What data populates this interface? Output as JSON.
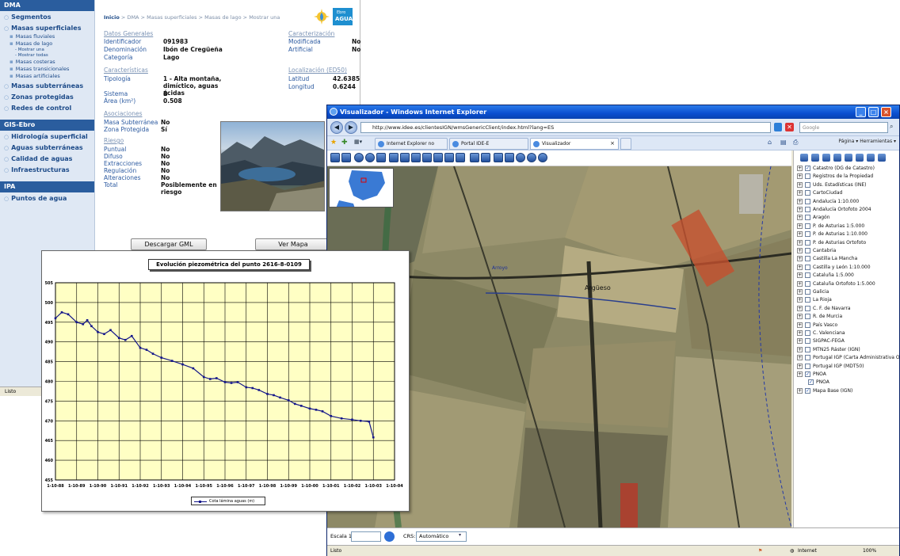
{
  "dma": {
    "sidebar": {
      "header1": "DMA",
      "items1": [
        "Segmentos",
        "Masas superficiales"
      ],
      "sub": [
        "Masas fluviales",
        "Masas de lago"
      ],
      "subsub": [
        "Mostrar una",
        "Mostrar todas"
      ],
      "sub2": [
        "Masas costeras",
        "Masas transicionales",
        "Masas artificiales"
      ],
      "items2": [
        "Masas subterráneas",
        "Zonas protegidas",
        "Redes de control"
      ],
      "header2": "GIS-Ebro",
      "items3": [
        "Hidrología superficial",
        "Aguas subterráneas",
        "Calidad de aguas",
        "Infraestructuras"
      ],
      "header3": "IPA",
      "items4": [
        "Puntos de agua"
      ]
    },
    "breadcrumb": [
      "Inicio",
      "DMA",
      "Masas superficiales",
      "Masas de lago",
      "Mostrar una"
    ],
    "breadcrumb_sep": ">",
    "logo_text": "AGUA",
    "logo_sub": "Ebro",
    "general": {
      "title": "Datos Generales",
      "rows": [
        {
          "label": "Identificador",
          "value": "091983"
        },
        {
          "label": "Denominación",
          "value": "Ibón de Cregüeña"
        },
        {
          "label": "Categoría",
          "value": "Lago"
        }
      ]
    },
    "caract": {
      "title": "Características",
      "tipologia_label": "Tipología",
      "tipologia_value": "1 - Alta montaña, dimíctico, aguas ácidas",
      "sistema_label": "Sistema",
      "sistema_value": "B",
      "area_label": "Área (km²)",
      "area_value": "0.508"
    },
    "caracterizacion": {
      "title": "Caracterización",
      "rows": [
        {
          "label": "Modificada",
          "value": "No"
        },
        {
          "label": "Artificial",
          "value": "No"
        }
      ]
    },
    "localizacion": {
      "title": "Localización (ED50)",
      "rows": [
        {
          "label": "Latitud",
          "value": "42.6385"
        },
        {
          "label": "Longitud",
          "value": "0.6244"
        }
      ]
    },
    "asociaciones": {
      "title": "Asociaciones",
      "rows": [
        {
          "label": "Masa Subterránea",
          "value": "No"
        },
        {
          "label": "Zona Protegida",
          "value": "Sí"
        }
      ]
    },
    "riesgo": {
      "title": "Riesgo",
      "rows": [
        {
          "label": "Puntual",
          "value": "No"
        },
        {
          "label": "Difuso",
          "value": "No"
        },
        {
          "label": "Extracciones",
          "value": "No"
        },
        {
          "label": "Regulación",
          "value": "No"
        },
        {
          "label": "Alteraciones",
          "value": "No"
        },
        {
          "label": "Total",
          "value": "Posiblemente en riesgo"
        }
      ]
    },
    "buttons": {
      "gml": "Descargar GML",
      "mapa": "Ver Mapa"
    },
    "status": "Listo"
  },
  "chart_data": {
    "type": "line",
    "title": "Evolución piezométrica del punto 2616-8-0109",
    "xlabel": "",
    "ylabel": "",
    "x_ticks": [
      "1-10-88",
      "1-10-89",
      "1-10-90",
      "1-10-91",
      "1-10-92",
      "1-10-93",
      "1-10-94",
      "1-10-95",
      "1-10-96",
      "1-10-97",
      "1-10-98",
      "1-10-99",
      "1-10-00",
      "1-10-01",
      "1-10-02",
      "1-10-03",
      "1-10-04"
    ],
    "y_ticks": [
      455,
      460,
      465,
      470,
      475,
      480,
      485,
      490,
      495,
      500,
      505
    ],
    "ylim": [
      455,
      505
    ],
    "grid": true,
    "legend_position": "bottom",
    "series": [
      {
        "name": "Cota lámina aguas (m)",
        "x": [
          0.0,
          0.3,
          0.6,
          1.0,
          1.3,
          1.5,
          1.7,
          2.0,
          2.3,
          2.6,
          3.0,
          3.3,
          3.6,
          4.0,
          4.3,
          4.6,
          5.0,
          5.5,
          6.0,
          6.5,
          7.0,
          7.3,
          7.6,
          8.0,
          8.3,
          8.6,
          9.0,
          9.3,
          9.6,
          10.0,
          10.3,
          10.6,
          11.0,
          11.3,
          11.6,
          12.0,
          12.3,
          12.6,
          13.0,
          13.5,
          14.0,
          14.4,
          14.8,
          15.0
        ],
        "y": [
          496,
          497.5,
          497,
          495,
          494.5,
          495.5,
          494,
          492.5,
          492,
          493,
          491,
          490.5,
          491.5,
          488.5,
          488,
          487,
          486,
          485.2,
          484.3,
          483.3,
          481.1,
          480.6,
          480.8,
          479.8,
          479.6,
          479.8,
          478.5,
          478.3,
          477.8,
          476.8,
          476.5,
          475.9,
          475.2,
          474.3,
          473.8,
          473.1,
          472.8,
          472.4,
          471.2,
          470.6,
          470.3,
          470,
          469.8,
          465.8
        ]
      }
    ]
  },
  "ie": {
    "title": "Visualizador - Windows Internet Explorer",
    "url": "http://www.idee.es/clientesIGN/wmsGenericClient/index.html?lang=ES",
    "search_placeholder": "Google",
    "tabs": [
      "Internet Explorer no puede ...",
      "Portal IDE-E",
      "Visualizador"
    ],
    "cmd": "Página ▾  Herramientas ▾",
    "layers": [
      {
        "name": "Catastro (DG de Catastro)",
        "checked": true
      },
      {
        "name": "Registros de la Propiedad",
        "checked": false
      },
      {
        "name": "Uds. Estadísticas (INE)",
        "checked": false
      },
      {
        "name": "CartoCiudad",
        "checked": false
      },
      {
        "name": "Andalucía 1:10.000",
        "checked": false
      },
      {
        "name": "Andalucía Ortofoto 2004",
        "checked": false
      },
      {
        "name": "Aragón",
        "checked": false
      },
      {
        "name": "P. de Asturias 1:5.000",
        "checked": false
      },
      {
        "name": "P. de Asturias 1:10.000",
        "checked": false
      },
      {
        "name": "P. de Asturias Ortofoto",
        "checked": false
      },
      {
        "name": "Cantabria",
        "checked": false
      },
      {
        "name": "Castilla La Mancha",
        "checked": false
      },
      {
        "name": "Castilla y León 1:10.000",
        "checked": false
      },
      {
        "name": "Cataluña 1:5.000",
        "checked": false
      },
      {
        "name": "Cataluña Ortofoto 1:5.000",
        "checked": false
      },
      {
        "name": "Galicia",
        "checked": false
      },
      {
        "name": "La Rioja",
        "checked": false
      },
      {
        "name": "C. F. de Navarra",
        "checked": false
      },
      {
        "name": "R. de Murcia",
        "checked": false
      },
      {
        "name": "País Vasco",
        "checked": false
      },
      {
        "name": "C. Valenciana",
        "checked": false
      },
      {
        "name": "SIGPAC-FEGA",
        "checked": false
      },
      {
        "name": "MTN25 Ráster (IGN)",
        "checked": false
      },
      {
        "name": "Portugal IGP (Carta Administrativa O",
        "checked": false
      },
      {
        "name": "Portugal IGP (MDT50)",
        "checked": false
      },
      {
        "name": "PNOA",
        "checked": true
      },
      {
        "name": "PNOA",
        "checked": true,
        "child": true
      },
      {
        "name": "Mapa Base (IGN)",
        "checked": true
      }
    ],
    "map_labels": [
      "Argüeso",
      "Arroyo"
    ],
    "scale_label": "Escala 1:",
    "crs_label": "CRS:",
    "crs_value": "Automático",
    "status_left": "Listo",
    "status_zone": "Internet",
    "zoom": "100%"
  }
}
